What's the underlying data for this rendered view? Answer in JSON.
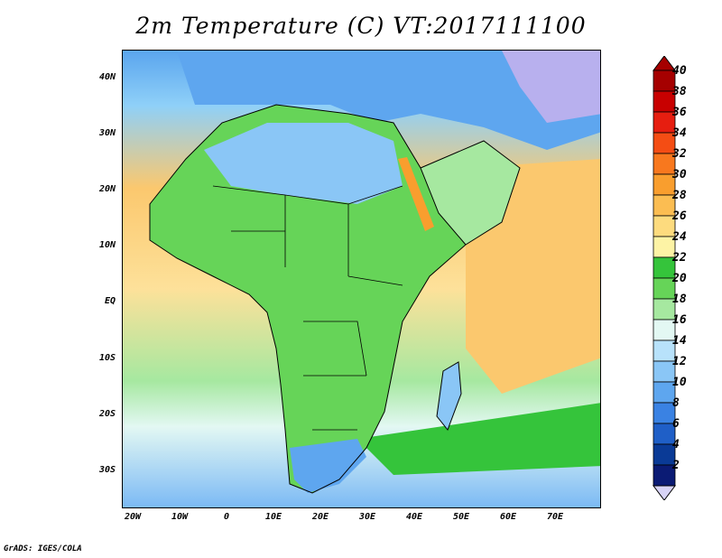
{
  "title": "2m Temperature (C) VT:2017111100",
  "credit": "GrADS: IGES/COLA",
  "map": {
    "region": "Africa and Arabian Peninsula",
    "variable": "2m Temperature",
    "units": "C",
    "lon_range": [
      -25,
      80
    ],
    "lat_range": [
      -38,
      45
    ],
    "lat_labels": [
      "40N",
      "30N",
      "20N",
      "10N",
      "EQ",
      "10S",
      "20S",
      "30S"
    ],
    "lon_labels": [
      "20W",
      "10W",
      "0",
      "10E",
      "20E",
      "30E",
      "40E",
      "50E",
      "60E",
      "70E"
    ]
  },
  "colorbar": {
    "labels": [
      "40",
      "38",
      "36",
      "34",
      "32",
      "30",
      "28",
      "26",
      "24",
      "22",
      "20",
      "18",
      "16",
      "14",
      "12",
      "10",
      "8",
      "6",
      "4",
      "2"
    ],
    "colors": [
      "#a50000",
      "#c80000",
      "#e61e10",
      "#f44d14",
      "#f8781e",
      "#f99e2e",
      "#fbbd52",
      "#fddb7e",
      "#fdf3a5",
      "#35c43b",
      "#66d458",
      "#a6e8a0",
      "#e3f8f3",
      "#b8e2fb",
      "#8ac6f6",
      "#5ea6ef",
      "#3a82e3",
      "#1f5fc7",
      "#0a3a96",
      "#0b1b74"
    ],
    "below_color": "#d8d4f6"
  }
}
